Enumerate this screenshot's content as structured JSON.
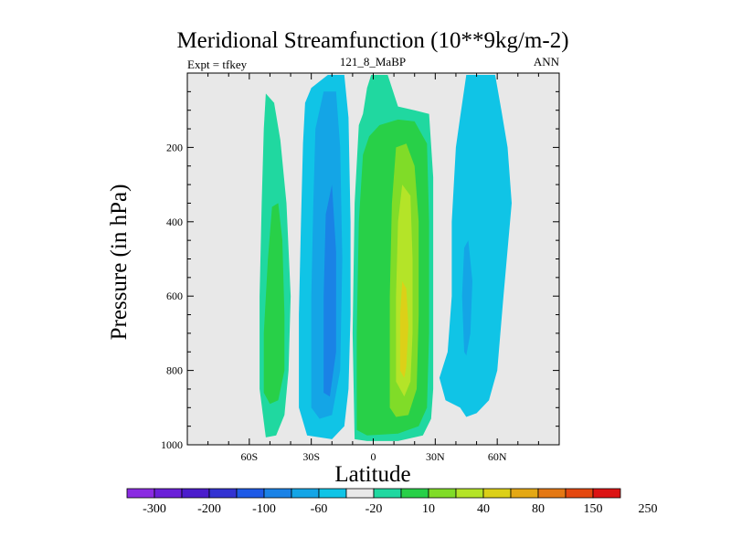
{
  "chart_data": {
    "type": "heatmap",
    "title": "Meridional Streamfunction (10**9kg/m-2)",
    "left_label": "Expt = tfkey",
    "center_label": "121_8_MaBP",
    "right_label": "ANN",
    "xlabel": "Latitude",
    "ylabel": "Pressure (in hPa)",
    "xlim": [
      -90,
      90
    ],
    "ylim": [
      1000,
      0
    ],
    "y_reversed": true,
    "grid": false,
    "x_ticks": [
      {
        "value": -60,
        "label": "60S"
      },
      {
        "value": -30,
        "label": "30S"
      },
      {
        "value": 0,
        "label": "0"
      },
      {
        "value": 30,
        "label": "30N"
      },
      {
        "value": 60,
        "label": "60N"
      }
    ],
    "y_ticks": [
      {
        "value": 200,
        "label": "200"
      },
      {
        "value": 400,
        "label": "400"
      },
      {
        "value": 600,
        "label": "600"
      },
      {
        "value": 800,
        "label": "800"
      },
      {
        "value": 1000,
        "label": "1000"
      }
    ],
    "background_color": "#e8e8e8",
    "colorbar": {
      "colors": [
        "#8a2be2",
        "#6a1fd8",
        "#4b1ccc",
        "#3232d2",
        "#1e5ae6",
        "#1a82e6",
        "#14a5e6",
        "#10c4e6",
        "#e8e8e8",
        "#20d8a0",
        "#28d048",
        "#80dc28",
        "#b4e428",
        "#dcd018",
        "#e4a814",
        "#e47814",
        "#e44810",
        "#dc1414"
      ],
      "labels": [
        {
          "after": 1,
          "text": "-300"
        },
        {
          "after": 3,
          "text": "-200"
        },
        {
          "after": 5,
          "text": "-100"
        },
        {
          "after": 7,
          "text": "-60"
        },
        {
          "after": 9,
          "text": "-20"
        },
        {
          "after": 11,
          "text": "10"
        },
        {
          "after": 13,
          "text": "40"
        },
        {
          "after": 15,
          "text": "80"
        },
        {
          "after": 17,
          "text": "150"
        },
        {
          "after": 19,
          "text": "250"
        }
      ]
    },
    "contours": [
      {
        "level": "green-10",
        "color": "#20d8a0",
        "points": [
          [
            -52,
            980
          ],
          [
            -55,
            850
          ],
          [
            -55,
            600
          ],
          [
            -54,
            350
          ],
          [
            -53,
            150
          ],
          [
            -52,
            55
          ],
          [
            -48,
            80
          ],
          [
            -45,
            180
          ],
          [
            -42,
            350
          ],
          [
            -40,
            600
          ],
          [
            -41,
            800
          ],
          [
            -43,
            920
          ],
          [
            -47,
            975
          ]
        ]
      },
      {
        "level": "green-40",
        "color": "#28d048",
        "points": [
          [
            -53,
            860
          ],
          [
            -53,
            700
          ],
          [
            -51,
            500
          ],
          [
            -49,
            360
          ],
          [
            -46,
            350
          ],
          [
            -44,
            450
          ],
          [
            -43,
            650
          ],
          [
            -43,
            800
          ],
          [
            -46,
            880
          ],
          [
            -50,
            890
          ]
        ]
      },
      {
        "level": "blue-20",
        "color": "#10c4e6",
        "points": [
          [
            -36,
            900
          ],
          [
            -36,
            650
          ],
          [
            -35,
            400
          ],
          [
            -34,
            190
          ],
          [
            -33,
            80
          ],
          [
            -30,
            40
          ],
          [
            -22,
            5
          ],
          [
            -14,
            5
          ],
          [
            -12,
            120
          ],
          [
            -11,
            400
          ],
          [
            -11,
            650
          ],
          [
            -12,
            850
          ],
          [
            -14,
            950
          ],
          [
            -20,
            985
          ],
          [
            -32,
            975
          ]
        ]
      },
      {
        "level": "blue-60",
        "color": "#14a5e6",
        "points": [
          [
            -30,
            900
          ],
          [
            -30,
            600
          ],
          [
            -29,
            350
          ],
          [
            -28,
            150
          ],
          [
            -24,
            50
          ],
          [
            -18,
            50
          ],
          [
            -16,
            200
          ],
          [
            -15,
            500
          ],
          [
            -16,
            800
          ],
          [
            -20,
            920
          ],
          [
            -26,
            930
          ]
        ]
      },
      {
        "level": "blue-100",
        "color": "#1a82e6",
        "points": [
          [
            -24,
            860
          ],
          [
            -24,
            600
          ],
          [
            -23,
            380
          ],
          [
            -20,
            300
          ],
          [
            -18,
            480
          ],
          [
            -18,
            750
          ],
          [
            -21,
            870
          ]
        ]
      },
      {
        "level": "green-10",
        "color": "#20d8a0",
        "points": [
          [
            -9,
            985
          ],
          [
            -10,
            700
          ],
          [
            -9,
            350
          ],
          [
            -7,
            140
          ],
          [
            -5,
            110
          ],
          [
            -3,
            40
          ],
          [
            -1,
            5
          ],
          [
            7,
            5
          ],
          [
            12,
            90
          ],
          [
            20,
            100
          ],
          [
            27,
            110
          ],
          [
            29,
            280
          ],
          [
            29,
            600
          ],
          [
            29,
            850
          ],
          [
            28,
            930
          ],
          [
            24,
            975
          ],
          [
            12,
            990
          ],
          [
            -3,
            990
          ]
        ]
      },
      {
        "level": "green-40",
        "color": "#28d048",
        "points": [
          [
            -8,
            960
          ],
          [
            -8,
            700
          ],
          [
            -7,
            400
          ],
          [
            -5,
            220
          ],
          [
            -2,
            170
          ],
          [
            3,
            140
          ],
          [
            12,
            125
          ],
          [
            20,
            130
          ],
          [
            26,
            190
          ],
          [
            27,
            400
          ],
          [
            27,
            700
          ],
          [
            26,
            900
          ],
          [
            22,
            950
          ],
          [
            12,
            970
          ],
          [
            -3,
            975
          ]
        ]
      },
      {
        "level": "yellow-green-80",
        "color": "#80dc28",
        "points": [
          [
            8,
            900
          ],
          [
            8,
            600
          ],
          [
            9,
            350
          ],
          [
            11,
            200
          ],
          [
            16,
            190
          ],
          [
            20,
            250
          ],
          [
            22,
            400
          ],
          [
            22,
            650
          ],
          [
            21,
            850
          ],
          [
            17,
            920
          ],
          [
            11,
            925
          ]
        ]
      },
      {
        "level": "yellow-120",
        "color": "#b4e428",
        "points": [
          [
            11,
            830
          ],
          [
            11,
            600
          ],
          [
            12,
            400
          ],
          [
            14,
            300
          ],
          [
            18,
            330
          ],
          [
            19,
            500
          ],
          [
            19,
            700
          ],
          [
            18,
            830
          ],
          [
            15,
            870
          ]
        ]
      },
      {
        "level": "yellow-150",
        "color": "#dcd018",
        "points": [
          [
            13,
            800
          ],
          [
            13,
            650
          ],
          [
            14,
            560
          ],
          [
            16,
            580
          ],
          [
            17,
            680
          ],
          [
            16,
            790
          ],
          [
            15,
            820
          ]
        ]
      },
      {
        "level": "blue-20",
        "color": "#10c4e6",
        "points": [
          [
            42,
            900
          ],
          [
            35,
            880
          ],
          [
            32,
            820
          ],
          [
            36,
            750
          ],
          [
            38,
            600
          ],
          [
            38,
            400
          ],
          [
            40,
            200
          ],
          [
            42,
            120
          ],
          [
            45,
            5
          ],
          [
            59,
            5
          ],
          [
            62,
            100
          ],
          [
            65,
            200
          ],
          [
            67,
            350
          ],
          [
            63,
            600
          ],
          [
            60,
            800
          ],
          [
            56,
            880
          ],
          [
            50,
            915
          ],
          [
            45,
            925
          ]
        ]
      },
      {
        "level": "blue-60",
        "color": "#14a5e6",
        "points": [
          [
            44,
            750
          ],
          [
            43,
            600
          ],
          [
            44,
            470
          ],
          [
            46,
            450
          ],
          [
            48,
            560
          ],
          [
            47,
            700
          ],
          [
            45,
            760
          ]
        ]
      }
    ]
  }
}
